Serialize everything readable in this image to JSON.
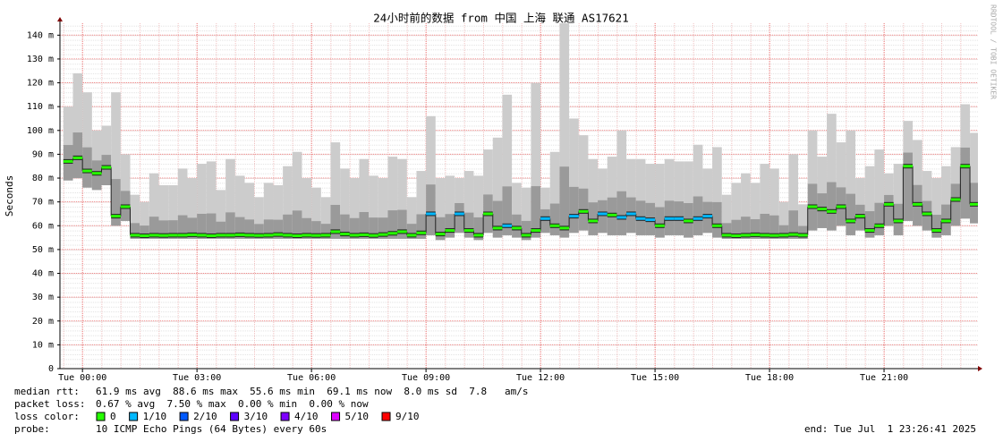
{
  "chart_data": {
    "type": "smokeping",
    "title": "24小时前的数据 from 中国 上海 联通 AS17621",
    "y_label": "Seconds",
    "watermark": "RRDTOOL / TOBI OETIKER",
    "x": [
      -0.5,
      -0.25,
      0,
      0.25,
      0.5,
      0.75,
      1,
      1.25,
      1.5,
      1.75,
      2,
      2.25,
      2.5,
      2.75,
      3,
      3.25,
      3.5,
      3.75,
      4,
      4.25,
      4.5,
      4.75,
      5,
      5.25,
      5.5,
      5.75,
      6,
      6.25,
      6.5,
      6.75,
      7,
      7.25,
      7.5,
      7.75,
      8,
      8.25,
      8.5,
      8.75,
      9,
      9.25,
      9.5,
      9.75,
      10,
      10.25,
      10.5,
      10.75,
      11,
      11.25,
      11.5,
      11.75,
      12,
      12.25,
      12.5,
      12.75,
      13,
      13.25,
      13.5,
      13.75,
      14,
      14.25,
      14.5,
      14.75,
      15,
      15.25,
      15.5,
      15.75,
      16,
      16.25,
      16.5,
      16.75,
      17,
      17.25,
      17.5,
      17.75,
      18,
      18.25,
      18.5,
      18.75,
      19,
      19.25,
      19.5,
      19.75,
      20,
      20.25,
      20.5,
      20.75,
      21,
      21.25,
      21.5,
      21.75,
      22,
      22.25,
      22.5,
      22.75,
      23,
      23.25
    ],
    "xlim": [
      -0.59,
      23.46
    ],
    "xticks": [
      {
        "value": 0,
        "label": "Tue 00:00"
      },
      {
        "value": 3,
        "label": "Tue 03:00"
      },
      {
        "value": 6,
        "label": "Tue 06:00"
      },
      {
        "value": 9,
        "label": "Tue 09:00"
      },
      {
        "value": 12,
        "label": "Tue 12:00"
      },
      {
        "value": 15,
        "label": "Tue 15:00"
      },
      {
        "value": 18,
        "label": "Tue 18:00"
      },
      {
        "value": 21,
        "label": "Tue 21:00"
      }
    ],
    "ylim": [
      0,
      0.145
    ],
    "yticks": [
      0,
      {
        "value": 0.01,
        "label": "10 m"
      },
      {
        "value": 0.02,
        "label": "20 m"
      },
      {
        "value": 0.03,
        "label": "30 m"
      },
      {
        "value": 0.04,
        "label": "40 m"
      },
      {
        "value": 0.05,
        "label": "50 m"
      },
      {
        "value": 0.06,
        "label": "60 m"
      },
      {
        "value": 0.07,
        "label": "70 m"
      },
      {
        "value": 0.08,
        "label": "80 m"
      },
      {
        "value": 0.09,
        "label": "90 m"
      },
      {
        "value": 0.1,
        "label": "100 m"
      },
      {
        "value": 0.11,
        "label": "110 m"
      },
      {
        "value": 0.12,
        "label": "120 m"
      },
      {
        "value": 0.13,
        "label": "130 m"
      },
      {
        "value": 0.14,
        "label": "140 m"
      }
    ],
    "grid": true,
    "values": [
      0.087,
      0.0885,
      0.083,
      0.082,
      0.0845,
      0.064,
      0.068,
      0.056,
      0.0558,
      0.056,
      0.0559,
      0.056,
      0.056,
      0.0562,
      0.056,
      0.0558,
      0.056,
      0.056,
      0.0562,
      0.056,
      0.0559,
      0.056,
      0.0563,
      0.056,
      0.0558,
      0.056,
      0.0559,
      0.056,
      0.0575,
      0.0565,
      0.056,
      0.0562,
      0.0559,
      0.0563,
      0.0568,
      0.0575,
      0.056,
      0.057,
      0.065,
      0.0565,
      0.058,
      0.065,
      0.058,
      0.056,
      0.065,
      0.059,
      0.06,
      0.059,
      0.056,
      0.058,
      0.063,
      0.06,
      0.059,
      0.064,
      0.066,
      0.062,
      0.065,
      0.0645,
      0.0635,
      0.065,
      0.063,
      0.0625,
      0.06,
      0.063,
      0.063,
      0.062,
      0.063,
      0.064,
      0.06,
      0.056,
      0.0558,
      0.056,
      0.0562,
      0.056,
      0.0559,
      0.056,
      0.0563,
      0.056,
      0.068,
      0.067,
      0.066,
      0.068,
      0.062,
      0.064,
      0.058,
      0.06,
      0.069,
      0.062,
      0.085,
      0.069,
      0.065,
      0.058,
      0.062,
      0.071,
      0.085,
      0.069
    ],
    "loss": [
      0,
      0,
      0,
      0,
      0,
      0,
      0,
      0,
      0,
      0,
      0,
      0,
      0,
      0,
      0,
      0,
      0,
      0,
      0,
      0,
      0,
      0,
      0,
      0,
      0,
      0,
      0,
      0,
      0,
      0,
      0,
      0,
      0,
      0,
      0,
      0,
      0,
      0,
      1,
      0,
      0,
      1,
      0,
      0,
      0,
      0,
      1,
      0,
      0,
      0,
      1,
      0,
      0,
      1,
      0,
      0,
      1,
      0,
      1,
      1,
      1,
      1,
      0,
      1,
      1,
      0,
      1,
      1,
      0,
      0,
      0,
      0,
      0,
      0,
      0,
      0,
      0,
      0,
      0,
      0,
      0,
      0,
      0,
      0,
      0,
      0,
      0,
      0,
      0,
      0,
      0,
      0,
      0,
      0,
      0,
      0
    ],
    "smoke_max": [
      0.11,
      0.124,
      0.116,
      0.1,
      0.102,
      0.116,
      0.09,
      0.073,
      0.07,
      0.082,
      0.077,
      0.077,
      0.084,
      0.08,
      0.086,
      0.087,
      0.075,
      0.088,
      0.081,
      0.078,
      0.072,
      0.078,
      0.077,
      0.085,
      0.091,
      0.08,
      0.076,
      0.072,
      0.095,
      0.084,
      0.08,
      0.088,
      0.081,
      0.08,
      0.089,
      0.088,
      0.072,
      0.083,
      0.106,
      0.08,
      0.081,
      0.08,
      0.083,
      0.081,
      0.092,
      0.097,
      0.115,
      0.078,
      0.076,
      0.12,
      0.076,
      0.091,
      0.145,
      0.105,
      0.098,
      0.088,
      0.084,
      0.089,
      0.1,
      0.088,
      0.088,
      0.086,
      0.086,
      0.088,
      0.087,
      0.087,
      0.094,
      0.084,
      0.093,
      0.073,
      0.078,
      0.082,
      0.078,
      0.086,
      0.084,
      0.07,
      0.09,
      0.069,
      0.1,
      0.089,
      0.107,
      0.095,
      0.1,
      0.08,
      0.085,
      0.092,
      0.082,
      0.086,
      0.104,
      0.096,
      0.083,
      0.08,
      0.085,
      0.093,
      0.111,
      0.099
    ],
    "smoke_min": [
      0.079,
      0.08,
      0.076,
      0.075,
      0.077,
      0.06,
      0.062,
      0.0545,
      0.0545,
      0.0545,
      0.0545,
      0.0545,
      0.0545,
      0.0545,
      0.0545,
      0.0545,
      0.0545,
      0.0545,
      0.0545,
      0.0545,
      0.0545,
      0.0545,
      0.0545,
      0.0545,
      0.0545,
      0.0545,
      0.0545,
      0.0545,
      0.0545,
      0.0545,
      0.0545,
      0.0545,
      0.0545,
      0.0545,
      0.0545,
      0.0545,
      0.0545,
      0.0545,
      0.056,
      0.054,
      0.055,
      0.057,
      0.055,
      0.054,
      0.057,
      0.055,
      0.056,
      0.055,
      0.054,
      0.055,
      0.057,
      0.056,
      0.055,
      0.057,
      0.058,
      0.056,
      0.057,
      0.056,
      0.056,
      0.057,
      0.056,
      0.056,
      0.055,
      0.056,
      0.056,
      0.055,
      0.056,
      0.057,
      0.055,
      0.0545,
      0.0545,
      0.0545,
      0.0545,
      0.0545,
      0.0545,
      0.0545,
      0.0545,
      0.0545,
      0.058,
      0.059,
      0.058,
      0.06,
      0.056,
      0.058,
      0.055,
      0.056,
      0.06,
      0.056,
      0.062,
      0.06,
      0.058,
      0.055,
      0.056,
      0.06,
      0.063,
      0.061
    ],
    "smoke_color": "#cccccc",
    "legend": {
      "median_rtt_label": "median rtt:",
      "median_rtt": "61.9 ms avg  88.6 ms max  55.6 ms min  69.1 ms now  8.0 ms sd  7.8   am/s",
      "packet_loss_label": "packet loss:",
      "packet_loss": "0.67 % avg  7.50 % max  0.00 % min  0.00 % now",
      "loss_color_label": "loss color:",
      "loss_colors": [
        {
          "name": "0",
          "color": "#26ff00"
        },
        {
          "name": "1/10",
          "color": "#00b8ff"
        },
        {
          "name": "2/10",
          "color": "#0059ff"
        },
        {
          "name": "3/10",
          "color": "#5e00ff"
        },
        {
          "name": "4/10",
          "color": "#7e00ff"
        },
        {
          "name": "5/10",
          "color": "#dd00ff"
        },
        {
          "name": "9/10",
          "color": "#ff0000"
        }
      ],
      "probe_label": "probe:",
      "probe": "10 ICMP Echo Pings (64 Bytes) every 60s",
      "end": "end: Tue Jul  1 23:26:41 2025"
    }
  }
}
